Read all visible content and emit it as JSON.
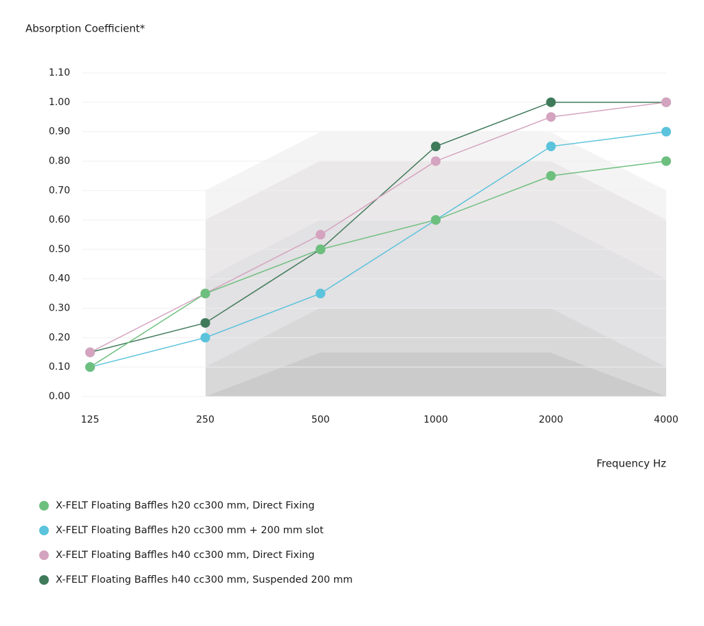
{
  "chart_data": {
    "type": "line",
    "title": "Absorption Coefficient*",
    "x_label": "Frequency Hz",
    "categories": [
      "125",
      "250",
      "500",
      "1000",
      "2000",
      "4000"
    ],
    "ylim": [
      0,
      1.1
    ],
    "yticks": [
      {
        "value": 0,
        "label": "0.00"
      },
      {
        "value": 0.1,
        "label": "0.10"
      },
      {
        "value": 0.2,
        "label": "0.20"
      },
      {
        "value": 0.3,
        "label": "0.30"
      },
      {
        "value": 0.4,
        "label": "0.40"
      },
      {
        "value": 0.5,
        "label": "0.50"
      },
      {
        "value": 0.6,
        "label": "0.60"
      },
      {
        "value": 0.7,
        "label": "0.70"
      },
      {
        "value": 0.8,
        "label": "0.80"
      },
      {
        "value": 0.9,
        "label": "0.90"
      },
      {
        "value": 1.0,
        "label": "1.00"
      },
      {
        "value": 1.1,
        "label": "1.10"
      }
    ],
    "grid": true,
    "series": [
      {
        "name": "X-FELT Floating Baffles h20 cc300 mm, Direct Fixing",
        "color": "#6dbf7e",
        "values": [
          0.1,
          0.35,
          0.5,
          0.6,
          0.75,
          0.8
        ]
      },
      {
        "name": "X-FELT Floating Baffles h20 cc300 mm + 200 mm slot",
        "color": "#5bc3dc",
        "values": [
          0.1,
          0.2,
          0.35,
          0.6,
          0.85,
          0.9
        ]
      },
      {
        "name": "X-FELT Floating Baffles h40 cc300 mm, Direct Fixing",
        "color": "#d4a3bf",
        "values": [
          0.15,
          0.35,
          0.55,
          0.8,
          0.95,
          1.0
        ]
      },
      {
        "name": "X-FELT Floating Baffles h40 cc300 mm, Suspended 200 mm",
        "color": "#3f7a5a",
        "values": [
          0.15,
          0.25,
          0.5,
          0.85,
          1.0,
          1.0
        ]
      }
    ]
  }
}
